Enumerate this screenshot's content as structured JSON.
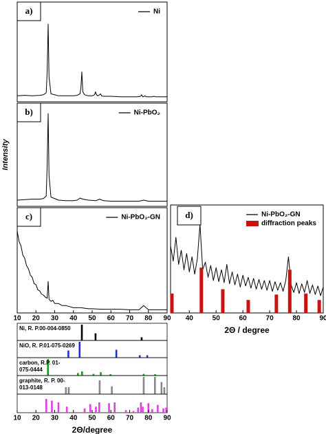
{
  "chart_data": [
    {
      "type": "line",
      "panel": "a)",
      "ylabel": "Intensity",
      "xlim": [
        10,
        90
      ],
      "ylim": [
        0,
        100
      ],
      "series": [
        {
          "name": "Ni",
          "color": "#000000",
          "x": [
            10,
            14,
            18,
            22,
            24,
            25.5,
            26,
            26.5,
            27,
            28,
            32,
            36,
            40,
            42,
            43.5,
            44,
            44.5,
            45,
            46,
            48,
            50,
            51.3,
            51.8,
            52.3,
            53,
            54,
            54.5,
            55,
            56,
            60,
            65,
            70,
            74,
            75.8,
            76.4,
            77,
            77.8,
            78.2,
            79,
            82,
            83,
            84,
            86,
            90
          ],
          "values": [
            6,
            6.5,
            6,
            6.5,
            7,
            9,
            30,
            78,
            25,
            8,
            6,
            6,
            6,
            6.5,
            8,
            14,
            30,
            10,
            7,
            6,
            6,
            7,
            10,
            7,
            6,
            7,
            8,
            6,
            5.5,
            5.5,
            5,
            5,
            5,
            5.5,
            7,
            5,
            5.5,
            6,
            5,
            5,
            5.5,
            5,
            5,
            5
          ]
        }
      ]
    },
    {
      "type": "line",
      "panel": "b)",
      "xlim": [
        10,
        90
      ],
      "ylim": [
        0,
        100
      ],
      "series": [
        {
          "name": "Ni-PbO₂",
          "color": "#000000",
          "x": [
            10,
            14,
            18,
            22,
            24,
            25.5,
            26,
            26.5,
            27,
            28,
            32,
            36,
            40,
            42,
            43.5,
            45,
            48,
            52,
            54,
            56,
            60,
            65,
            70,
            75,
            77.5,
            80,
            85,
            90
          ],
          "values": [
            6,
            6.5,
            7,
            7,
            7.5,
            10,
            40,
            90,
            30,
            9,
            6,
            5.5,
            5.5,
            6,
            8,
            7,
            6,
            5.5,
            7,
            5.5,
            5,
            5,
            5,
            5,
            6,
            5,
            5,
            5
          ]
        }
      ]
    },
    {
      "type": "line",
      "panel": "c)",
      "xlim": [
        10,
        90
      ],
      "ylim": [
        0,
        100
      ],
      "xticks": [
        10,
        20,
        30,
        40,
        50,
        60,
        70,
        80,
        90
      ],
      "series": [
        {
          "name": "Ni-PbO₂-GN",
          "color": "#000000",
          "x": [
            10,
            11,
            12,
            13,
            14,
            15,
            16,
            17,
            18,
            19,
            20,
            21,
            22,
            23,
            24,
            25,
            26,
            26.5,
            27,
            28,
            29,
            30,
            32,
            34,
            36,
            38,
            40,
            42,
            44,
            46,
            48,
            50,
            55,
            60,
            65,
            70,
            75,
            77.5,
            80,
            85,
            90
          ],
          "values": [
            78,
            68,
            64,
            55,
            52,
            45,
            42,
            36,
            34,
            28,
            27,
            22,
            21,
            18,
            17,
            15,
            14,
            30,
            13,
            11,
            12,
            9,
            9,
            7,
            7,
            6,
            5,
            5,
            5,
            4.5,
            4,
            4,
            3.5,
            3.5,
            3.5,
            3,
            3,
            7,
            3,
            3,
            3
          ]
        }
      ]
    },
    {
      "type": "stick",
      "xlim": [
        10,
        90
      ],
      "ylim": [
        0,
        100
      ],
      "xticks": [
        10,
        20,
        30,
        40,
        50,
        60,
        70,
        80,
        90
      ],
      "xlabel": "2Θ/degree",
      "series": [
        {
          "name": "Ni, R. P.00-004-0850",
          "color": "#000000",
          "x": [
            44.5,
            51.8,
            76.4
          ],
          "values": [
            100,
            45,
            20
          ]
        },
        {
          "name": "NiO, R. P.01-075-0269",
          "color": "#1f2fd0",
          "x": [
            37.3,
            43.3,
            62.9,
            75.4,
            79.4
          ],
          "values": [
            45,
            100,
            50,
            15,
            15
          ]
        },
        {
          "name": "carbon, R.P. 01-075-0444",
          "color": "#1a9a1a",
          "x": [
            26.4,
            42.4,
            44.6,
            50.7,
            54.6,
            59.8,
            77.5,
            83.6
          ],
          "values": [
            100,
            15,
            25,
            10,
            20,
            8,
            10,
            8
          ]
        },
        {
          "name": "graphite, R. P. 00-013-0148",
          "color": "#888888",
          "x": [
            36,
            37.5,
            54,
            60.5,
            77.5,
            83.5,
            87,
            88.5
          ],
          "values": [
            40,
            40,
            80,
            45,
            100,
            100,
            70,
            40
          ]
        },
        {
          "name": null,
          "color": "#e040e0",
          "x": [
            25.5,
            28.5,
            32,
            36.5,
            46,
            49,
            52,
            53.8,
            59,
            62,
            68,
            72,
            74.5,
            76,
            77,
            80,
            82,
            85,
            88,
            89.5
          ],
          "values": [
            80,
            70,
            60,
            35,
            25,
            50,
            35,
            60,
            55,
            60,
            15,
            10,
            30,
            60,
            35,
            55,
            20,
            45,
            25,
            30
          ]
        }
      ]
    },
    {
      "type": "line",
      "panel": "d)",
      "xlim": [
        33,
        90
      ],
      "ylim": [
        0,
        100
      ],
      "xticks": [
        40,
        50,
        60,
        70,
        80,
        90
      ],
      "xlabel": "2Θ / degree",
      "series": [
        {
          "name": "Ni-PbO₂-GN",
          "color": "#000000",
          "x": [
            33,
            34,
            35,
            36,
            37,
            38,
            39,
            40,
            41,
            42,
            43,
            44,
            45,
            46,
            47,
            48,
            49,
            50,
            51,
            52,
            53,
            54,
            55,
            56,
            57,
            58,
            59,
            60,
            61,
            62,
            63,
            64,
            65,
            66,
            67,
            68,
            69,
            70,
            71,
            72,
            73,
            74,
            75,
            76,
            77,
            78,
            79,
            80,
            81,
            82,
            83,
            84,
            85,
            86,
            87,
            88,
            89,
            90
          ],
          "values": [
            62,
            48,
            70,
            45,
            58,
            40,
            55,
            38,
            52,
            36,
            50,
            82,
            40,
            47,
            33,
            44,
            30,
            42,
            29,
            40,
            28,
            45,
            27,
            38,
            26,
            36,
            24,
            35,
            25,
            33,
            23,
            32,
            22,
            31,
            22,
            30,
            21,
            30,
            20,
            29,
            21,
            28,
            20,
            30,
            52,
            26,
            19,
            28,
            18,
            27,
            19,
            30,
            18,
            26,
            17,
            25,
            16,
            24
          ]
        },
        {
          "name": "diffraction peaks",
          "type": "bar",
          "color": "#cc1111",
          "x": [
            33.5,
            44.5,
            52.5,
            62,
            72.5,
            77.5,
            83.5,
            88.5
          ],
          "values": [
            18,
            42,
            22,
            12,
            17,
            40,
            18,
            12
          ]
        }
      ]
    }
  ]
}
